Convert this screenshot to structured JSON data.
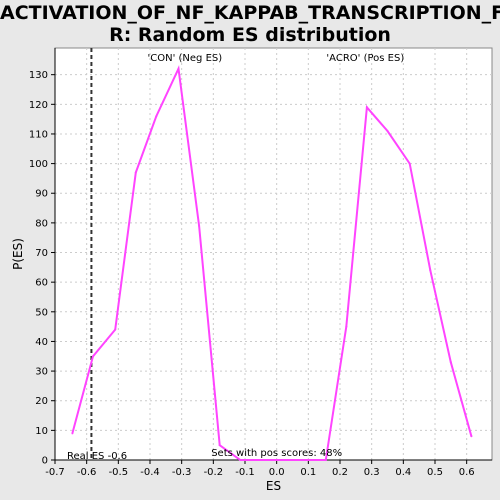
{
  "title_lines": [
    "ACTIVATION_OF_NF_KAPPAB_TRANSCRIPTION_FACTO",
    "R: Random ES distribution"
  ],
  "colors": {
    "curve": "#ff44ff",
    "neg_label": "#4444ff",
    "pos_label": "#ff4444",
    "grid": "#cccccc",
    "real_es_line": "#333333"
  },
  "annotations": {
    "neg": "'CON' (Neg ES)",
    "pos": "'ACRO' (Pos ES)",
    "real_es": "Real ES -0.6",
    "pos_scores": "Sets with pos scores: 48%"
  },
  "chart_data": {
    "type": "line",
    "title": "ACTIVATION_OF_NF_KAPPAB_TRANSCRIPTION_FACTOR: Random ES distribution",
    "xlabel": "ES",
    "ylabel": "P(ES)",
    "xlim": [
      -0.7,
      0.68
    ],
    "ylim": [
      0,
      139
    ],
    "xticks": [
      -0.7,
      -0.6,
      -0.5,
      -0.4,
      -0.3,
      -0.2,
      -0.1,
      0.0,
      0.1,
      0.2,
      0.3,
      0.4,
      0.5,
      0.6
    ],
    "xtick_labels": [
      "-0.7",
      "-0.6",
      "-0.5",
      "-0.4",
      "-0.3",
      "-0.2",
      "-0.1",
      "0.0",
      "0.1",
      "0.2",
      "0.3",
      "0.4",
      "0.5",
      "0.6"
    ],
    "yticks": [
      0,
      10,
      20,
      30,
      40,
      50,
      60,
      70,
      80,
      90,
      100,
      110,
      120,
      130
    ],
    "ytick_labels": [
      "0",
      "10",
      "20",
      "30",
      "40",
      "50",
      "60",
      "70",
      "80",
      "90",
      "100",
      "110",
      "120",
      "130"
    ],
    "grid": true,
    "real_es": -0.585,
    "series": [
      {
        "x": [
          -0.645,
          -0.58,
          -0.51,
          -0.445,
          -0.38,
          -0.31,
          -0.245,
          -0.18,
          -0.115,
          -0.05,
          0.015,
          0.08,
          0.155,
          0.22,
          0.285,
          0.35,
          0.42,
          0.485,
          0.55,
          0.615
        ],
        "y": [
          9,
          35,
          44,
          97,
          116,
          132,
          79,
          5,
          0,
          0,
          0,
          0,
          0,
          45,
          119,
          111,
          100,
          64,
          33,
          8
        ]
      }
    ]
  }
}
